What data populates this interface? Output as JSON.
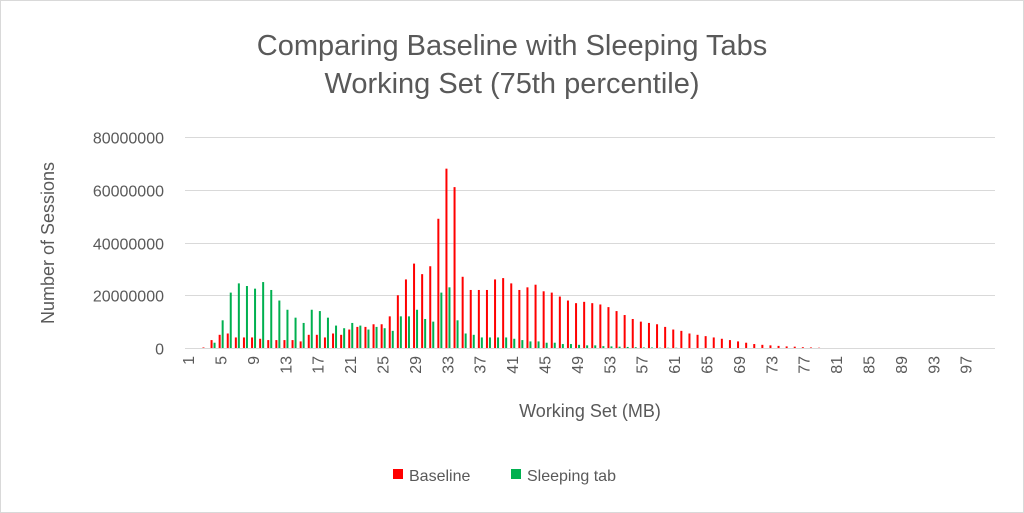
{
  "chart_data": {
    "type": "bar",
    "title": [
      "Comparing Baseline with Sleeping Tabs",
      "Working Set (75th percentile)"
    ],
    "xlabel": "Working Set (MB)",
    "ylabel": "Number of Sessions",
    "ylim": [
      0,
      80000000
    ],
    "yticks": [
      "0",
      "20000000",
      "40000000",
      "60000000",
      "80000000"
    ],
    "xtick_labels": [
      "1",
      "5",
      "9",
      "13",
      "17",
      "21",
      "25",
      "29",
      "33",
      "37",
      "41",
      "45",
      "49",
      "53",
      "57",
      "61",
      "65",
      "69",
      "73",
      "77",
      "81",
      "85",
      "89",
      "93",
      "97"
    ],
    "x_start": 1,
    "x_count": 100,
    "grid": true,
    "legend_position": "bottom",
    "colors": {
      "Baseline": "#ff0000",
      "Sleeping tab": "#00b050"
    },
    "series": [
      {
        "name": "Baseline",
        "values_millions": [
          0,
          0,
          0.2,
          3,
          5,
          5.5,
          4,
          4,
          4,
          3.5,
          3,
          3,
          3,
          3,
          2.5,
          5,
          5,
          4,
          5.5,
          5,
          7,
          8,
          8,
          9,
          9,
          12,
          20,
          26,
          32,
          28,
          31,
          49,
          68,
          61,
          27,
          22,
          22,
          22,
          26,
          26.5,
          24.5,
          22,
          23,
          24,
          21.5,
          21,
          19.5,
          18,
          17,
          17.5,
          17,
          16.5,
          15.5,
          14,
          12.5,
          11,
          10,
          9.5,
          9,
          8,
          7,
          6.5,
          5.5,
          5,
          4.5,
          4,
          3.5,
          3,
          2.5,
          2,
          1.5,
          1.2,
          1,
          0.8,
          0.6,
          0.5,
          0.3,
          0.2,
          0.1,
          0,
          0,
          0,
          0,
          0,
          0,
          0,
          0,
          0,
          0,
          0,
          0,
          0,
          0,
          0,
          0,
          0,
          0,
          0,
          0,
          0
        ]
      },
      {
        "name": "Sleeping tab",
        "values_millions": [
          0,
          0,
          0,
          2,
          10.5,
          21,
          24.5,
          23.5,
          22.5,
          25,
          22,
          18,
          14.5,
          11.5,
          9.5,
          14.5,
          14,
          11.5,
          8.5,
          7.5,
          9.5,
          8.5,
          7,
          8,
          7.5,
          6.5,
          12,
          12,
          14.5,
          11,
          10,
          21,
          23,
          10.5,
          5.5,
          5,
          4,
          4,
          4,
          4,
          3.5,
          3,
          2.5,
          2.5,
          2,
          2,
          1.5,
          1.5,
          1.2,
          1,
          1,
          0.7,
          0.6,
          0.5,
          0.4,
          0.3,
          0.2,
          0.2,
          0.1,
          0.1,
          0.1,
          0,
          0,
          0,
          0,
          0,
          0,
          0,
          0,
          0,
          0,
          0,
          0,
          0,
          0,
          0,
          0,
          0,
          0,
          0,
          0,
          0,
          0,
          0,
          0,
          0,
          0,
          0,
          0,
          0,
          0,
          0,
          0,
          0,
          0,
          0,
          0,
          0,
          0,
          0
        ]
      }
    ]
  }
}
